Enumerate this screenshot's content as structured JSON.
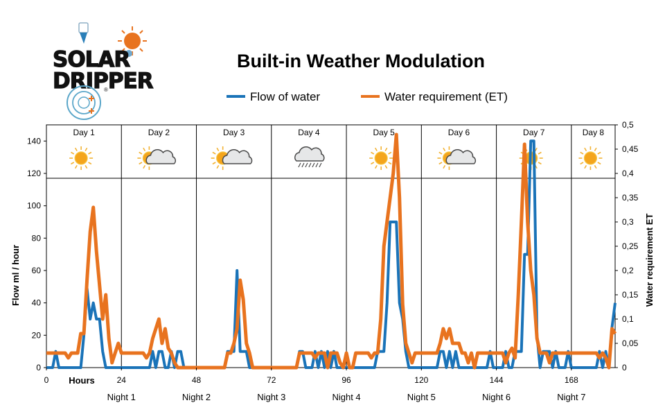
{
  "logo": {
    "line1": "SOLAR",
    "line2": "DRIPPER",
    "mark": "®"
  },
  "colors": {
    "flow": "#1a73b8",
    "et": "#e8731f",
    "sun_fill": "#f4a51c",
    "sun_ray": "#f2b233",
    "cloud": "#9aa0a6"
  },
  "chart_data": {
    "type": "line",
    "title": "Built-in Weather Modulation",
    "xlabel": "Hours",
    "ylabel": "Flow   ml / hour",
    "y2label": "Water requirement ET",
    "xlim": [
      0,
      182
    ],
    "ylim": [
      0,
      150
    ],
    "y2lim": [
      0,
      0.5
    ],
    "xticks": [
      0,
      24,
      48,
      72,
      96,
      120,
      144,
      168
    ],
    "yticks": [
      0,
      20,
      40,
      60,
      80,
      100,
      120,
      140
    ],
    "y2ticks": [
      "0",
      "0,05",
      "0,1",
      "0,15",
      "0,2",
      "0,25",
      "0,3",
      "0,35",
      "0,4",
      "0,45",
      "0,5"
    ],
    "legend_position": "top",
    "days": [
      {
        "label": "Day 1",
        "weather": "sunny"
      },
      {
        "label": "Day  2",
        "weather": "cloudy"
      },
      {
        "label": "Day 3",
        "weather": "partly-cloudy"
      },
      {
        "label": "Day 4",
        "weather": "rain"
      },
      {
        "label": "Day 5",
        "weather": "sunny"
      },
      {
        "label": "Day 6",
        "weather": "cloudy"
      },
      {
        "label": "Day 7",
        "weather": "sunny"
      },
      {
        "label": "Day 8",
        "weather": "sunny"
      }
    ],
    "day_boundaries": [
      0,
      24,
      48,
      72,
      96,
      120,
      144,
      168,
      182
    ],
    "nights": [
      "Night 1",
      "Night  2",
      "Night 3",
      "Night 4",
      "Night 5",
      "Night 6",
      "Night 7"
    ],
    "night_centers": [
      24,
      48,
      72,
      96,
      120,
      144,
      168
    ],
    "series": [
      {
        "name": "Flow of water",
        "axis": "left",
        "points": [
          [
            0,
            0
          ],
          [
            2,
            0
          ],
          [
            3,
            10
          ],
          [
            4,
            0
          ],
          [
            10,
            0
          ],
          [
            11,
            0
          ],
          [
            12,
            20
          ],
          [
            13,
            49
          ],
          [
            14,
            30
          ],
          [
            15,
            40
          ],
          [
            16,
            30
          ],
          [
            17,
            30
          ],
          [
            18,
            10
          ],
          [
            19,
            0
          ],
          [
            24,
            0
          ],
          [
            33,
            0
          ],
          [
            34,
            10
          ],
          [
            35,
            0
          ],
          [
            36,
            10
          ],
          [
            37,
            10
          ],
          [
            38,
            0
          ],
          [
            39,
            0
          ],
          [
            40,
            10
          ],
          [
            41,
            0
          ],
          [
            42,
            10
          ],
          [
            43,
            10
          ],
          [
            44,
            0
          ],
          [
            57,
            0
          ],
          [
            58,
            10
          ],
          [
            59,
            10
          ],
          [
            60,
            10
          ],
          [
            61,
            60
          ],
          [
            62,
            10
          ],
          [
            63,
            10
          ],
          [
            64,
            10
          ],
          [
            65,
            0
          ],
          [
            80,
            0
          ],
          [
            81,
            10
          ],
          [
            82,
            10
          ],
          [
            83,
            0
          ],
          [
            85,
            0
          ],
          [
            86,
            10
          ],
          [
            87,
            0
          ],
          [
            88,
            10
          ],
          [
            89,
            0
          ],
          [
            90,
            10
          ],
          [
            91,
            0
          ],
          [
            92,
            10
          ],
          [
            93,
            0
          ],
          [
            105,
            0
          ],
          [
            106,
            10
          ],
          [
            107,
            10
          ],
          [
            108,
            10
          ],
          [
            109,
            40
          ],
          [
            110,
            90
          ],
          [
            111,
            90
          ],
          [
            112,
            90
          ],
          [
            113,
            40
          ],
          [
            114,
            30
          ],
          [
            115,
            10
          ],
          [
            116,
            0
          ],
          [
            125,
            0
          ],
          [
            126,
            10
          ],
          [
            127,
            10
          ],
          [
            128,
            0
          ],
          [
            129,
            10
          ],
          [
            130,
            0
          ],
          [
            131,
            10
          ],
          [
            132,
            0
          ],
          [
            136,
            0
          ],
          [
            137,
            0
          ],
          [
            141,
            0
          ],
          [
            142,
            10
          ],
          [
            143,
            0
          ],
          [
            146,
            0
          ],
          [
            147,
            10
          ],
          [
            148,
            0
          ],
          [
            149,
            0
          ],
          [
            150,
            10
          ],
          [
            151,
            10
          ],
          [
            152,
            10
          ],
          [
            153,
            70
          ],
          [
            154,
            70
          ],
          [
            155,
            140
          ],
          [
            156,
            140
          ],
          [
            157,
            20
          ],
          [
            158,
            0
          ],
          [
            159,
            10
          ],
          [
            160,
            10
          ],
          [
            161,
            10
          ],
          [
            162,
            0
          ],
          [
            163,
            10
          ],
          [
            164,
            0
          ],
          [
            165,
            0
          ],
          [
            166,
            0
          ],
          [
            167,
            10
          ],
          [
            168,
            0
          ],
          [
            176,
            0
          ],
          [
            177,
            10
          ],
          [
            178,
            0
          ],
          [
            179,
            10
          ],
          [
            180,
            0
          ],
          [
            181,
            25
          ],
          [
            182,
            40
          ]
        ]
      },
      {
        "name": "Water requirement (ET)",
        "axis": "right",
        "points": [
          [
            0,
            0.03
          ],
          [
            6,
            0.03
          ],
          [
            7,
            0.02
          ],
          [
            8,
            0.03
          ],
          [
            10,
            0.03
          ],
          [
            11,
            0.07
          ],
          [
            12,
            0.07
          ],
          [
            13,
            0.18
          ],
          [
            14,
            0.28
          ],
          [
            15,
            0.33
          ],
          [
            16,
            0.24
          ],
          [
            17,
            0.17
          ],
          [
            18,
            0.1
          ],
          [
            19,
            0.15
          ],
          [
            20,
            0.06
          ],
          [
            21,
            0.01
          ],
          [
            22,
            0.03
          ],
          [
            23,
            0.05
          ],
          [
            24,
            0.03
          ],
          [
            31,
            0.03
          ],
          [
            32,
            0.02
          ],
          [
            33,
            0.03
          ],
          [
            34,
            0.06
          ],
          [
            35,
            0.08
          ],
          [
            36,
            0.1
          ],
          [
            37,
            0.05
          ],
          [
            38,
            0.08
          ],
          [
            39,
            0.04
          ],
          [
            40,
            0.03
          ],
          [
            41,
            0.01
          ],
          [
            42,
            0
          ],
          [
            57,
            0
          ],
          [
            58,
            0.03
          ],
          [
            59,
            0.03
          ],
          [
            60,
            0.05
          ],
          [
            61,
            0.08
          ],
          [
            62,
            0.18
          ],
          [
            63,
            0.14
          ],
          [
            64,
            0.05
          ],
          [
            65,
            0.03
          ],
          [
            66,
            0
          ],
          [
            80,
            0
          ],
          [
            81,
            0.03
          ],
          [
            82,
            0.03
          ],
          [
            83,
            0.03
          ],
          [
            84,
            0.03
          ],
          [
            85,
            0.03
          ],
          [
            86,
            0.02
          ],
          [
            87,
            0.03
          ],
          [
            88,
            0.03
          ],
          [
            89,
            0.03
          ],
          [
            90,
            0
          ],
          [
            91,
            0.03
          ],
          [
            92,
            0.03
          ],
          [
            93,
            0.03
          ],
          [
            94,
            0.01
          ],
          [
            95,
            0
          ],
          [
            96,
            0.03
          ],
          [
            97,
            0
          ],
          [
            98,
            0
          ],
          [
            99,
            0.03
          ],
          [
            103,
            0.03
          ],
          [
            104,
            0.02
          ],
          [
            105,
            0.03
          ],
          [
            106,
            0.03
          ],
          [
            107,
            0.1
          ],
          [
            108,
            0.25
          ],
          [
            109,
            0.3
          ],
          [
            110,
            0.35
          ],
          [
            111,
            0.4
          ],
          [
            112,
            0.48
          ],
          [
            113,
            0.35
          ],
          [
            114,
            0.13
          ],
          [
            115,
            0.05
          ],
          [
            116,
            0.03
          ],
          [
            117,
            0.01
          ],
          [
            118,
            0.03
          ],
          [
            124,
            0.03
          ],
          [
            125,
            0.03
          ],
          [
            126,
            0.05
          ],
          [
            127,
            0.08
          ],
          [
            128,
            0.06
          ],
          [
            129,
            0.08
          ],
          [
            130,
            0.05
          ],
          [
            131,
            0.05
          ],
          [
            132,
            0.05
          ],
          [
            133,
            0.03
          ],
          [
            134,
            0.03
          ],
          [
            135,
            0.01
          ],
          [
            136,
            0.03
          ],
          [
            137,
            0
          ],
          [
            138,
            0.03
          ],
          [
            140,
            0.03
          ],
          [
            141,
            0.03
          ],
          [
            142,
            0.03
          ],
          [
            144,
            0.03
          ],
          [
            145,
            0.03
          ],
          [
            146,
            0.03
          ],
          [
            147,
            0.01
          ],
          [
            148,
            0.03
          ],
          [
            149,
            0.04
          ],
          [
            150,
            0.02
          ],
          [
            151,
            0.15
          ],
          [
            152,
            0.3
          ],
          [
            153,
            0.46
          ],
          [
            154,
            0.3
          ],
          [
            155,
            0.2
          ],
          [
            156,
            0.15
          ],
          [
            157,
            0.06
          ],
          [
            158,
            0.03
          ],
          [
            159,
            0.03
          ],
          [
            160,
            0.03
          ],
          [
            161,
            0.01
          ],
          [
            162,
            0.03
          ],
          [
            168,
            0.03
          ],
          [
            176,
            0.03
          ],
          [
            177,
            0.02
          ],
          [
            178,
            0.03
          ],
          [
            179,
            0.02
          ],
          [
            180,
            0
          ],
          [
            181,
            0.08
          ],
          [
            182,
            0.07
          ]
        ]
      }
    ]
  }
}
